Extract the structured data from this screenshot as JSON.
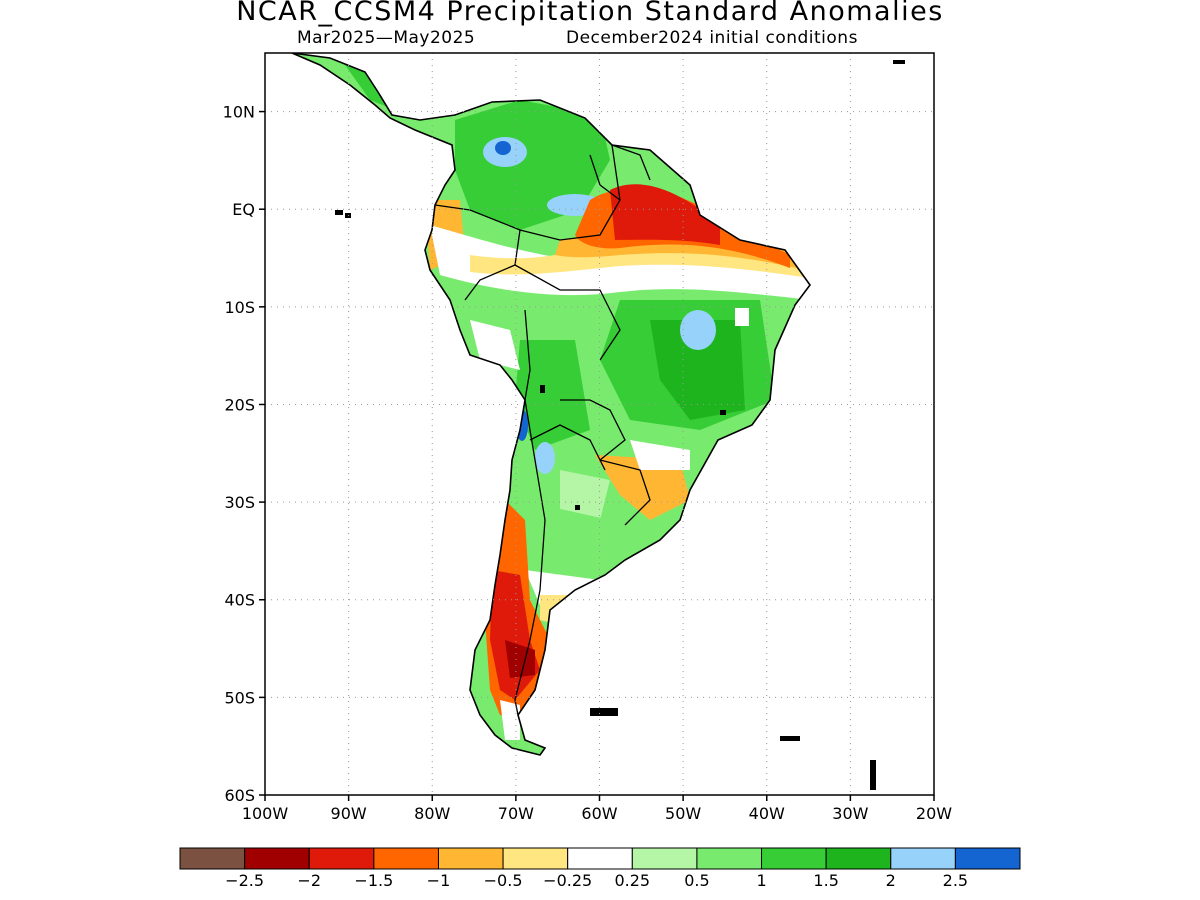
{
  "title": "NCAR_CCSM4 Precipitation Standard Anomalies",
  "subtitle_left": "Mar2025—May2025",
  "subtitle_right": "December2024 initial conditions",
  "lat_ticks": [
    {
      "label": "10N",
      "lat": 10
    },
    {
      "label": "EQ",
      "lat": 0
    },
    {
      "label": "10S",
      "lat": -10
    },
    {
      "label": "20S",
      "lat": -20
    },
    {
      "label": "30S",
      "lat": -30
    },
    {
      "label": "40S",
      "lat": -40
    },
    {
      "label": "50S",
      "lat": -50
    },
    {
      "label": "60S",
      "lat": -60
    }
  ],
  "lon_ticks": [
    {
      "label": "100W",
      "lon": -100
    },
    {
      "label": "90W",
      "lon": -90
    },
    {
      "label": "80W",
      "lon": -80
    },
    {
      "label": "70W",
      "lon": -70
    },
    {
      "label": "60W",
      "lon": -60
    },
    {
      "label": "50W",
      "lon": -50
    },
    {
      "label": "40W",
      "lon": -40
    },
    {
      "label": "30W",
      "lon": -30
    },
    {
      "label": "20W",
      "lon": -20
    }
  ],
  "lon_range": [
    -100,
    -20
  ],
  "lat_range": [
    -60,
    16
  ],
  "grid": true,
  "colorbar": {
    "colors": [
      "#7b5242",
      "#a00000",
      "#e01a0a",
      "#ff6600",
      "#ffb733",
      "#ffe680",
      "#ffffff",
      "#b4f5a6",
      "#78eb6e",
      "#37cd37",
      "#1eb41e",
      "#96d2fa",
      "#1464d2"
    ],
    "labels": [
      "−2.5",
      "−2",
      "−1.5",
      "−1",
      "−0.5",
      "−0.25",
      "0.25",
      "0.5",
      "1",
      "1.5",
      "2",
      "2.5"
    ]
  }
}
